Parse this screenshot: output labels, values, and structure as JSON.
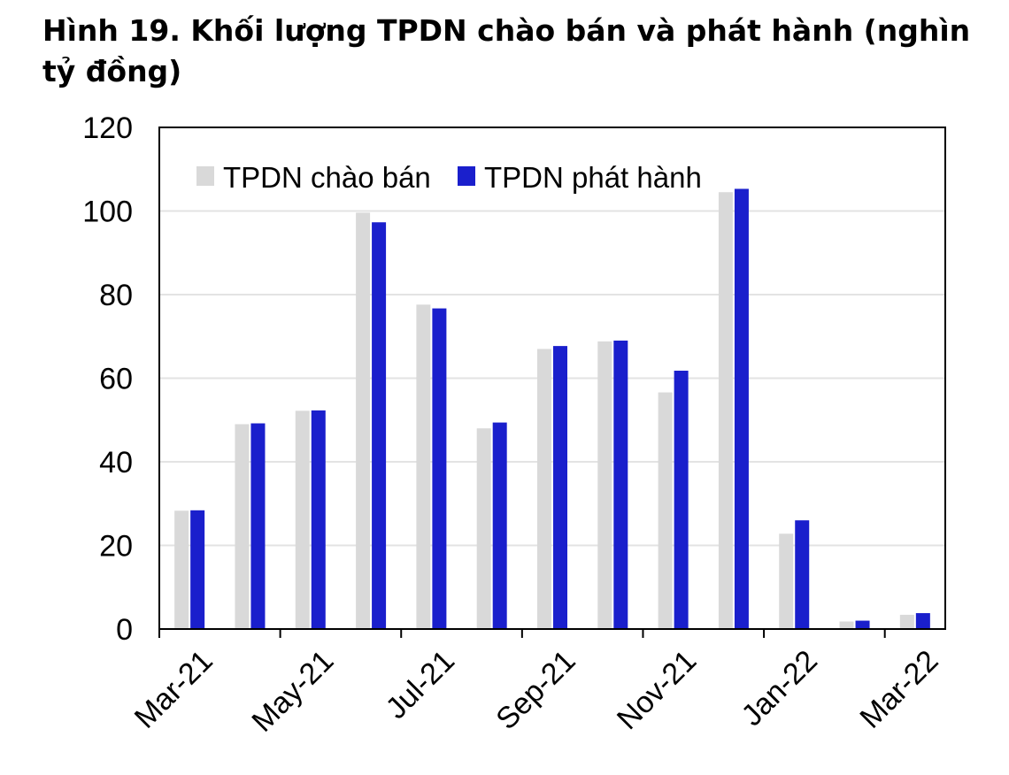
{
  "title": "Hình 19. Khối lượng TPDN chào bán và phát hành (nghìn tỷ đồng)",
  "chart_data": {
    "type": "bar",
    "title": "Hình 19. Khối lượng TPDN chào bán và phát hành (nghìn tỷ đồng)",
    "xlabel": "",
    "ylabel": "",
    "ylim": [
      0,
      120
    ],
    "yticks": [
      0,
      20,
      40,
      60,
      80,
      100,
      120
    ],
    "xtick_labels": [
      "Mar-21",
      "May-21",
      "Jul-21",
      "Sep-21",
      "Nov-21",
      "Jan-22",
      "Mar-22"
    ],
    "categories": [
      "Mar-21",
      "Apr-21",
      "May-21",
      "Jun-21",
      "Jul-21",
      "Aug-21",
      "Sep-21",
      "Oct-21",
      "Nov-21",
      "Dec-21",
      "Jan-22",
      "Feb-22",
      "Mar-22"
    ],
    "series": [
      {
        "name": "TPDN chào bán",
        "color": "#d9d9d9",
        "values": [
          28.3,
          49,
          52.2,
          99.6,
          77.6,
          48,
          67,
          68.8,
          56.6,
          104.5,
          22.8,
          1.8,
          3.4
        ]
      },
      {
        "name": "TPDN phát hành",
        "color": "#1a1fcc",
        "values": [
          28.4,
          49.2,
          52.3,
          97.3,
          76.7,
          49.4,
          67.7,
          69,
          61.8,
          105.3,
          26,
          2,
          3.8
        ]
      }
    ],
    "legend_position": "top-left",
    "grid": true
  }
}
